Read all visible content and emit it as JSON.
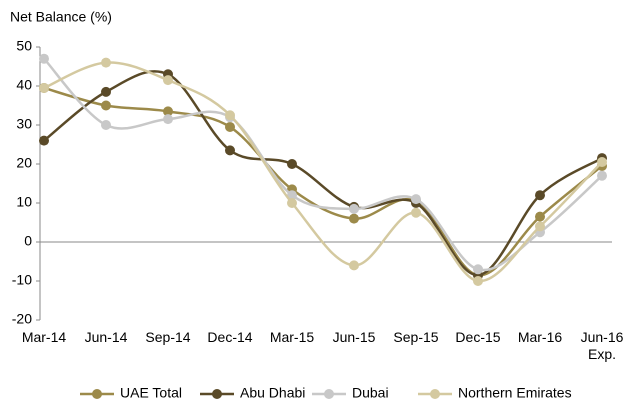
{
  "chart_data": {
    "type": "line",
    "y_label": "Net Balance (%)",
    "categories": [
      "Mar-14",
      "Jun-14",
      "Sep-14",
      "Dec-14",
      "Mar-15",
      "Jun-15",
      "Sep-15",
      "Dec-15",
      "Mar-16",
      "Jun-16\nExp."
    ],
    "series": [
      {
        "name": "UAE Total",
        "color": "#9c8a4a",
        "values": [
          39.5,
          35,
          33.5,
          29.5,
          13.5,
          6,
          10.5,
          -8.5,
          6.5,
          19.5
        ]
      },
      {
        "name": "Abu Dhabi",
        "color": "#5a4a28",
        "values": [
          26,
          38.5,
          43,
          23.5,
          20,
          9,
          10,
          -8.5,
          12,
          21.5
        ]
      },
      {
        "name": "Dubai",
        "color": "#c8c8c8",
        "values": [
          47,
          30,
          31.5,
          32,
          12,
          8.5,
          11,
          -7,
          2.5,
          17
        ]
      },
      {
        "name": "Northern Emirates",
        "color": "#d4c9a0",
        "values": [
          39.5,
          46,
          41.5,
          32.5,
          10,
          -6,
          7.5,
          -10,
          4,
          20.5
        ]
      }
    ],
    "ylim": [
      -20,
      50
    ],
    "yticks": [
      -20,
      -10,
      0,
      10,
      20,
      30,
      40,
      50
    ],
    "legend": "bottom",
    "smooth": true
  }
}
